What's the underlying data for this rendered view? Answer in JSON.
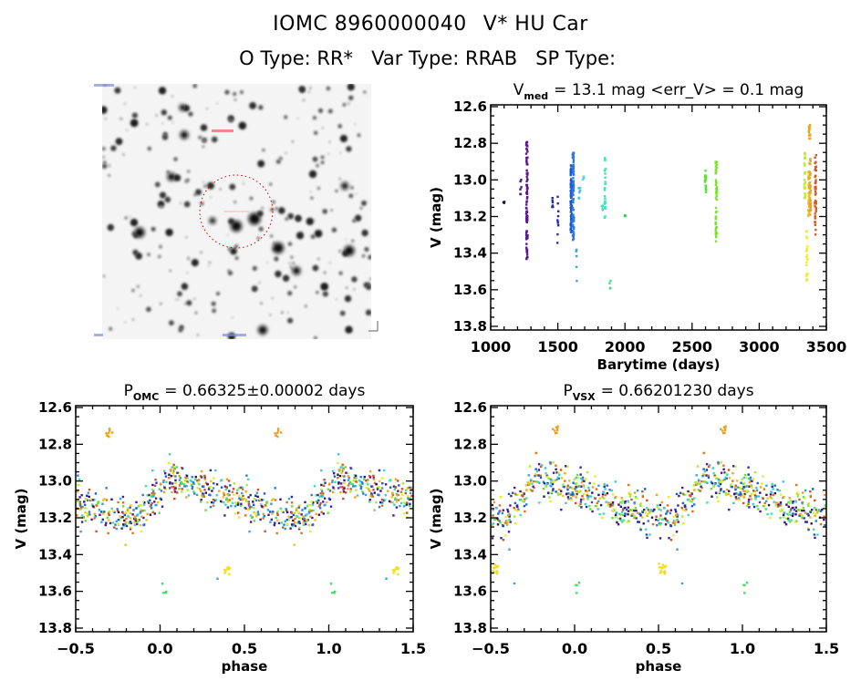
{
  "header": {
    "object_id": "IOMC 8960000040",
    "star_name": "V* HU Car",
    "o_type_label": "O Type:",
    "o_type_value": "RR*",
    "var_type_label": "Var Type:",
    "var_type_value": "RRAB",
    "sp_type_label": "SP Type:",
    "sp_type_value": ""
  },
  "finder_image": {
    "description": "inverted grayscale star field with red dotted circle marking target",
    "circle_color": "#cc0000"
  },
  "chart_data": [
    {
      "id": "light_curve",
      "type": "scatter",
      "title_main": "V",
      "title_sub": "med",
      "title_rest": "= 13.1 mag <err_V> = 0.1 mag",
      "vmed": 13.1,
      "err_v": 0.1,
      "xlabel": "Barytime (days)",
      "ylabel": "V (mag)",
      "xlim": [
        1000,
        3500
      ],
      "ylim": [
        13.82,
        12.59
      ],
      "y_inverted": true,
      "xticks": [
        1000,
        1500,
        2000,
        2500,
        3000,
        3500
      ],
      "xtick_labels": [
        "1000",
        "1500",
        "2000",
        "2500",
        "3000",
        "3500"
      ],
      "yticks": [
        12.6,
        12.8,
        13.0,
        13.2,
        13.4,
        13.6,
        13.8
      ],
      "ytick_labels": [
        "12.6",
        "12.8",
        "13.0",
        "13.2",
        "13.4",
        "13.6",
        "13.8"
      ],
      "grid": false,
      "groups": [
        {
          "t": 1100,
          "color": "#1a1a40",
          "vmin": 13.12,
          "vmax": 13.15,
          "n": 3
        },
        {
          "t": 1225,
          "color": "#4b1a7a",
          "vmin": 12.96,
          "vmax": 13.12,
          "n": 6
        },
        {
          "t": 1270,
          "color": "#5a1a8a",
          "vmin": 12.78,
          "vmax": 13.45,
          "n": 90
        },
        {
          "t": 1460,
          "color": "#2a2a9a",
          "vmin": 13.08,
          "vmax": 13.16,
          "n": 6
        },
        {
          "t": 1500,
          "color": "#2a2aa8",
          "vmin": 13.07,
          "vmax": 13.36,
          "n": 10
        },
        {
          "t": 1600,
          "color": "#1a5ad0",
          "vmin": 12.92,
          "vmax": 13.3,
          "n": 90
        },
        {
          "t": 1615,
          "color": "#2a7ae0",
          "vmin": 12.85,
          "vmax": 13.33,
          "n": 70
        },
        {
          "t": 1640,
          "color": "#3aa0e0",
          "vmin": 13.36,
          "vmax": 13.56,
          "n": 5
        },
        {
          "t": 1660,
          "color": "#40c0e0",
          "vmin": 13.03,
          "vmax": 13.11,
          "n": 6
        },
        {
          "t": 1690,
          "color": "#50d8e0",
          "vmin": 12.98,
          "vmax": 13.01,
          "n": 4
        },
        {
          "t": 1850,
          "color": "#40e0b0",
          "vmin": 12.88,
          "vmax": 13.24,
          "n": 22
        },
        {
          "t": 1830,
          "color": "#40e0c0",
          "vmin": 13.13,
          "vmax": 13.19,
          "n": 4
        },
        {
          "t": 1890,
          "color": "#40e080",
          "vmin": 13.55,
          "vmax": 13.6,
          "n": 4
        },
        {
          "t": 2000,
          "color": "#40d060",
          "vmin": 13.19,
          "vmax": 13.2,
          "n": 3
        },
        {
          "t": 2600,
          "color": "#60e040",
          "vmin": 12.94,
          "vmax": 13.08,
          "n": 18
        },
        {
          "t": 2680,
          "color": "#80e030",
          "vmin": 12.9,
          "vmax": 13.35,
          "n": 60
        },
        {
          "t": 3340,
          "color": "#c0f020",
          "vmin": 12.85,
          "vmax": 13.1,
          "n": 30
        },
        {
          "t": 3355,
          "color": "#f0f020",
          "vmin": 13.28,
          "vmax": 13.56,
          "n": 25
        },
        {
          "t": 3370,
          "color": "#f0c020",
          "vmin": 12.95,
          "vmax": 13.2,
          "n": 40
        },
        {
          "t": 3375,
          "color": "#f0a020",
          "vmin": 12.68,
          "vmax": 12.78,
          "n": 14
        },
        {
          "t": 3380,
          "color": "#f0a030",
          "vmin": 12.88,
          "vmax": 13.21,
          "n": 40
        },
        {
          "t": 3420,
          "color": "#d85a20",
          "vmin": 12.82,
          "vmax": 13.3,
          "n": 40
        }
      ]
    },
    {
      "id": "phase_omc",
      "type": "scatter",
      "title_main": "P",
      "title_sub": "OMC",
      "title_rest": "= 0.66325±0.00002 days",
      "period_days": 0.66325,
      "period_err_days": 2e-05,
      "xlabel": "phase",
      "ylabel": "V (mag)",
      "xlim": [
        -0.5,
        1.5
      ],
      "ylim": [
        13.82,
        12.59
      ],
      "y_inverted": true,
      "xticks": [
        -0.5,
        0.0,
        0.5,
        1.0,
        1.5
      ],
      "xtick_labels": [
        "−0.5",
        "0.0",
        "0.5",
        "1.0",
        "1.5"
      ],
      "yticks": [
        12.6,
        12.8,
        13.0,
        13.2,
        13.4,
        13.6,
        13.8
      ],
      "ytick_labels": [
        "12.6",
        "12.8",
        "13.0",
        "13.2",
        "13.4",
        "13.6",
        "13.8"
      ],
      "grid": false,
      "repeat_period": 1.0,
      "max_phase": 0.05,
      "min_phase": 0.4,
      "mean_mag": 13.1,
      "amplitude": 0.24,
      "scatter": 0.09,
      "n_points": 420,
      "palette": [
        "#3a1060",
        "#4b1a8a",
        "#2a2aa8",
        "#1a5ad0",
        "#2a7ae0",
        "#3aa0e0",
        "#40c8d8",
        "#40e0a0",
        "#60e040",
        "#a0f030",
        "#e0f020",
        "#f0c020",
        "#f0a020",
        "#e07020",
        "#d05020"
      ],
      "outliers": [
        {
          "x": -0.3,
          "v": 12.73,
          "color": "#f0a020",
          "n": 8
        },
        {
          "x": 0.02,
          "v": 13.58,
          "color": "#40e060",
          "n": 4
        },
        {
          "x": 0.4,
          "v": 13.48,
          "color": "#f0e020",
          "n": 10
        },
        {
          "x": 0.33,
          "v": 13.55,
          "color": "#3aa0e0",
          "n": 1
        }
      ]
    },
    {
      "id": "phase_vsx",
      "type": "scatter",
      "title_main": "P",
      "title_sub": "VSX",
      "title_rest": "= 0.66201230 days",
      "period_days": 0.6620123,
      "xlabel": "phase",
      "ylabel": "V (mag)",
      "xlim": [
        -0.5,
        1.5
      ],
      "ylim": [
        13.82,
        12.59
      ],
      "y_inverted": true,
      "xticks": [
        -0.5,
        0.0,
        0.5,
        1.0,
        1.5
      ],
      "xtick_labels": [
        "−0.5",
        "0.0",
        "0.5",
        "1.0",
        "1.5"
      ],
      "yticks": [
        12.6,
        12.8,
        13.0,
        13.2,
        13.4,
        13.6,
        13.8
      ],
      "ytick_labels": [
        "12.6",
        "12.8",
        "13.0",
        "13.2",
        "13.4",
        "13.6",
        "13.8"
      ],
      "grid": false,
      "repeat_period": 1.0,
      "max_phase": -0.22,
      "min_phase": 0.57,
      "mean_mag": 13.1,
      "amplitude": 0.24,
      "scatter": 0.09,
      "n_points": 420,
      "palette": [
        "#3a1060",
        "#4b1a8a",
        "#2a2aa8",
        "#1a5ad0",
        "#2a7ae0",
        "#3aa0e0",
        "#40c8d8",
        "#40e0a0",
        "#60e040",
        "#a0f030",
        "#e0f020",
        "#f0c020",
        "#f0a020",
        "#e07020",
        "#d05020"
      ],
      "outliers": [
        {
          "x": -0.12,
          "v": 12.73,
          "color": "#f0a020",
          "n": 8
        },
        {
          "x": 0.01,
          "v": 13.58,
          "color": "#40e060",
          "n": 4
        },
        {
          "x": 0.52,
          "v": 13.48,
          "color": "#f0e020",
          "n": 10
        },
        {
          "x": -0.47,
          "v": 13.48,
          "color": "#f0e020",
          "n": 6
        },
        {
          "x": 0.63,
          "v": 13.55,
          "color": "#3aa0e0",
          "n": 1
        }
      ]
    }
  ]
}
